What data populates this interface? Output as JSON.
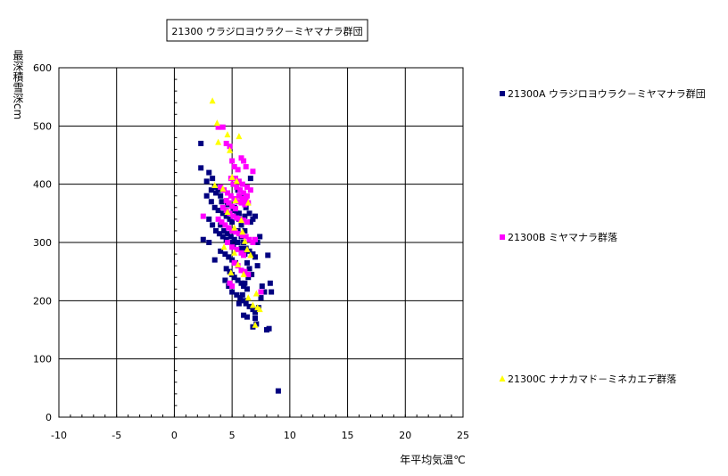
{
  "chart_data": {
    "type": "scatter",
    "title": "21300 ウラジロヨウラク－ミヤマナラ群団",
    "xlabel": "年平均気温℃",
    "ylabel": "最深積雪深cm",
    "xlim": [
      -10,
      25
    ],
    "ylim": [
      0,
      600
    ],
    "xticks": [
      -10,
      -5,
      0,
      5,
      10,
      15,
      20,
      25
    ],
    "yticks": [
      0,
      100,
      200,
      300,
      400,
      500,
      600
    ],
    "grid": true,
    "legend_position": "right",
    "series": [
      {
        "name": "21300A ウラジロヨウラク－ミヤマナラ群団",
        "marker": "square",
        "color": "#000080",
        "points": [
          [
            2.3,
            470
          ],
          [
            2.3,
            428
          ],
          [
            2.8,
            405
          ],
          [
            3.0,
            420
          ],
          [
            3.3,
            410
          ],
          [
            3.5,
            395
          ],
          [
            3.8,
            390
          ],
          [
            4.0,
            380
          ],
          [
            2.8,
            380
          ],
          [
            3.2,
            370
          ],
          [
            3.5,
            360
          ],
          [
            3.8,
            355
          ],
          [
            4.2,
            350
          ],
          [
            4.5,
            345
          ],
          [
            4.8,
            340
          ],
          [
            5.0,
            335
          ],
          [
            3.0,
            340
          ],
          [
            3.3,
            330
          ],
          [
            3.6,
            320
          ],
          [
            3.9,
            315
          ],
          [
            4.2,
            310
          ],
          [
            4.5,
            305
          ],
          [
            4.8,
            300
          ],
          [
            5.1,
            295
          ],
          [
            2.5,
            305
          ],
          [
            3.0,
            300
          ],
          [
            3.5,
            270
          ],
          [
            4.0,
            285
          ],
          [
            4.4,
            280
          ],
          [
            4.7,
            275
          ],
          [
            5.0,
            270
          ],
          [
            5.3,
            265
          ],
          [
            4.5,
            255
          ],
          [
            4.8,
            250
          ],
          [
            5.0,
            245
          ],
          [
            5.2,
            240
          ],
          [
            5.5,
            235
          ],
          [
            5.8,
            230
          ],
          [
            6.0,
            225
          ],
          [
            6.3,
            220
          ],
          [
            4.4,
            235
          ],
          [
            4.7,
            225
          ],
          [
            5.0,
            215
          ],
          [
            5.4,
            210
          ],
          [
            5.7,
            205
          ],
          [
            6.0,
            200
          ],
          [
            6.2,
            195
          ],
          [
            6.5,
            190
          ],
          [
            6.0,
            175
          ],
          [
            6.3,
            172
          ],
          [
            6.8,
            185
          ],
          [
            7.0,
            180
          ],
          [
            7.3,
            188
          ],
          [
            7.5,
            205
          ],
          [
            7.6,
            225
          ],
          [
            7.8,
            215
          ],
          [
            8.0,
            150
          ],
          [
            8.2,
            152
          ],
          [
            8.1,
            278
          ],
          [
            8.3,
            230
          ],
          [
            8.4,
            215
          ],
          [
            6.8,
            155
          ],
          [
            7.1,
            160
          ],
          [
            7.0,
            170
          ],
          [
            5.5,
            390
          ],
          [
            5.8,
            380
          ],
          [
            6.0,
            370
          ],
          [
            6.2,
            360
          ],
          [
            6.5,
            350
          ],
          [
            6.8,
            340
          ],
          [
            7.0,
            345
          ],
          [
            6.6,
            410
          ],
          [
            5.5,
            320
          ],
          [
            5.8,
            310
          ],
          [
            6.0,
            300
          ],
          [
            6.2,
            290
          ],
          [
            6.5,
            285
          ],
          [
            6.8,
            280
          ],
          [
            7.0,
            275
          ],
          [
            7.2,
            260
          ],
          [
            5.2,
            360
          ],
          [
            5.4,
            350
          ],
          [
            5.6,
            340
          ],
          [
            5.8,
            330
          ],
          [
            6.1,
            320
          ],
          [
            6.3,
            265
          ],
          [
            6.5,
            255
          ],
          [
            6.7,
            245
          ],
          [
            4.0,
            330
          ],
          [
            4.3,
            320
          ],
          [
            4.6,
            315
          ],
          [
            4.9,
            310
          ],
          [
            5.2,
            305
          ],
          [
            5.5,
            300
          ],
          [
            5.8,
            290
          ],
          [
            6.1,
            280
          ],
          [
            3.2,
            390
          ],
          [
            3.6,
            385
          ],
          [
            4.1,
            370
          ],
          [
            4.6,
            365
          ],
          [
            5.1,
            355
          ],
          [
            5.6,
            350
          ],
          [
            6.1,
            345
          ],
          [
            6.6,
            335
          ],
          [
            9.0,
            45
          ],
          [
            7.4,
            310
          ],
          [
            7.2,
            300
          ],
          [
            6.9,
            300
          ],
          [
            6.4,
            240
          ],
          [
            6.1,
            230
          ],
          [
            5.9,
            210
          ],
          [
            5.6,
            195
          ]
        ]
      },
      {
        "name": "21300B ミヤマナラ群落",
        "marker": "square",
        "color": "#ff00ff",
        "points": [
          [
            3.8,
            498
          ],
          [
            4.2,
            498
          ],
          [
            4.5,
            470
          ],
          [
            4.8,
            465
          ],
          [
            5.0,
            440
          ],
          [
            5.2,
            430
          ],
          [
            5.5,
            425
          ],
          [
            5.8,
            445
          ],
          [
            6.0,
            440
          ],
          [
            6.2,
            430
          ],
          [
            6.8,
            422
          ],
          [
            5.3,
            410
          ],
          [
            5.6,
            405
          ],
          [
            5.9,
            400
          ],
          [
            6.3,
            395
          ],
          [
            6.6,
            390
          ],
          [
            4.0,
            395
          ],
          [
            4.3,
            390
          ],
          [
            4.6,
            385
          ],
          [
            4.9,
            380
          ],
          [
            5.2,
            375
          ],
          [
            5.5,
            370
          ],
          [
            5.8,
            368
          ],
          [
            6.1,
            365
          ],
          [
            4.2,
            360
          ],
          [
            4.5,
            355
          ],
          [
            4.8,
            350
          ],
          [
            5.1,
            345
          ],
          [
            5.4,
            342
          ],
          [
            5.7,
            340
          ],
          [
            6.0,
            338
          ],
          [
            6.3,
            335
          ],
          [
            4.4,
            330
          ],
          [
            4.7,
            325
          ],
          [
            5.0,
            320
          ],
          [
            5.3,
            318
          ],
          [
            5.6,
            315
          ],
          [
            5.9,
            312
          ],
          [
            6.2,
            310
          ],
          [
            6.5,
            305
          ],
          [
            2.5,
            345
          ],
          [
            3.8,
            340
          ],
          [
            4.1,
            335
          ],
          [
            6.8,
            300
          ],
          [
            7.0,
            305
          ],
          [
            4.6,
            300
          ],
          [
            5.0,
            292
          ],
          [
            5.4,
            288
          ],
          [
            5.8,
            282
          ],
          [
            6.0,
            278
          ],
          [
            5.2,
            265
          ],
          [
            5.5,
            260
          ],
          [
            5.8,
            252
          ],
          [
            6.1,
            250
          ],
          [
            6.4,
            245
          ],
          [
            4.8,
            230
          ],
          [
            5.0,
            225
          ],
          [
            7.5,
            215
          ],
          [
            5.6,
            380
          ],
          [
            5.9,
            375
          ],
          [
            6.2,
            372
          ],
          [
            6.4,
            368
          ],
          [
            4.9,
            410
          ],
          [
            5.1,
            400
          ],
          [
            5.4,
            395
          ],
          [
            5.7,
            390
          ],
          [
            6.0,
            385
          ],
          [
            6.3,
            380
          ],
          [
            4.5,
            372
          ],
          [
            4.7,
            368
          ],
          [
            5.0,
            362
          ],
          [
            5.3,
            358
          ]
        ]
      },
      {
        "name": "21300C ナナカマド－ミネカエデ群落",
        "marker": "triangle",
        "color": "#ffff00",
        "points": [
          [
            3.3,
            543
          ],
          [
            3.7,
            505
          ],
          [
            4.6,
            485
          ],
          [
            5.6,
            482
          ],
          [
            3.8,
            472
          ],
          [
            4.8,
            458
          ],
          [
            3.5,
            398
          ],
          [
            4.2,
            392
          ],
          [
            5.0,
            412
          ],
          [
            5.4,
            405
          ],
          [
            6.4,
            368
          ],
          [
            5.2,
            325
          ],
          [
            5.9,
            318
          ],
          [
            4.3,
            292
          ],
          [
            6.3,
            288
          ],
          [
            5.2,
            282
          ],
          [
            6.6,
            278
          ],
          [
            5.5,
            262
          ],
          [
            4.9,
            248
          ],
          [
            6.0,
            245
          ],
          [
            7.1,
            212
          ],
          [
            6.4,
            205
          ],
          [
            6.8,
            192
          ],
          [
            7.2,
            188
          ],
          [
            7.4,
            185
          ],
          [
            7.0,
            158
          ],
          [
            5.8,
            338
          ],
          [
            4.6,
            352
          ],
          [
            5.3,
            372
          ],
          [
            6.1,
            302
          ]
        ]
      }
    ]
  }
}
